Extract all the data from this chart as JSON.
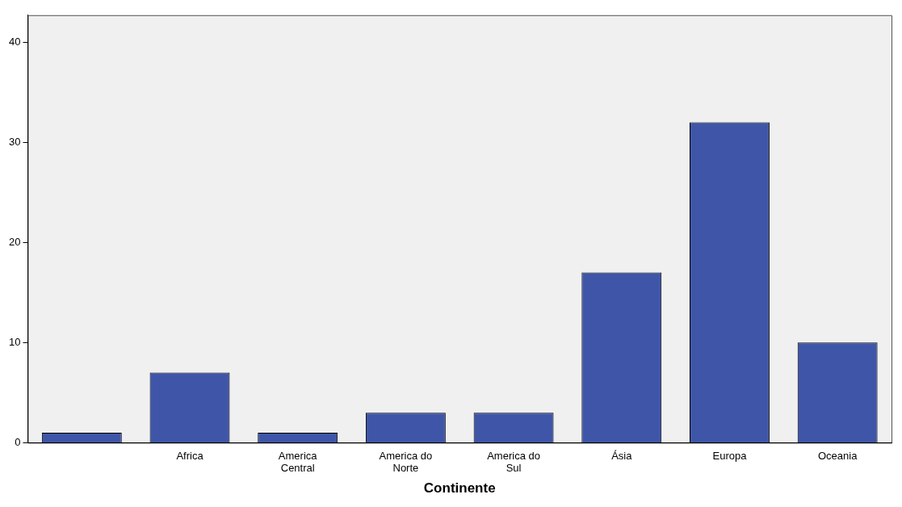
{
  "chart_data": {
    "type": "bar",
    "xlabel": "Continente",
    "categories": [
      null,
      "Africa",
      "America Central",
      "America do Norte",
      "America do Sul",
      "Ásia",
      "Europa",
      "Oceania"
    ],
    "values": [
      1,
      7,
      1,
      3,
      3,
      17,
      32,
      10
    ],
    "color": "#3f56a8",
    "ylim": [
      0,
      42.7
    ],
    "yticks": [
      0,
      10,
      20,
      30,
      40
    ],
    "grid": false,
    "legend": false
  }
}
